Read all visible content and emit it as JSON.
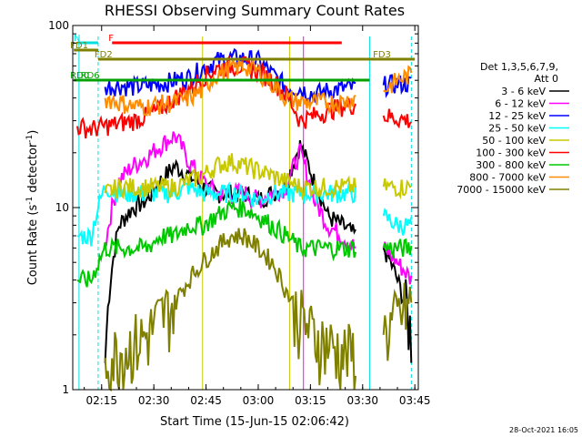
{
  "chart_data": {
    "type": "line",
    "title": "RHESSI Observing Summary Count Rates",
    "xlabel": "Start Time (15-Jun-15 02:06:42)",
    "ylabel": "Count Rate (s⁻¹ detector⁻¹)",
    "xlim": [
      "02:06:42",
      "03:46:00"
    ],
    "ylim": [
      1,
      100
    ],
    "yscale": "log",
    "x_ticks": [
      "02:15",
      "02:30",
      "02:45",
      "03:00",
      "03:15",
      "03:30",
      "03:45"
    ],
    "y_ticks": [
      "1",
      "10",
      "100"
    ],
    "legend_title": [
      "Det 1,3,5,6,7,9,",
      "Att 0"
    ],
    "legend_placement": "right",
    "x": [
      "02:08",
      "02:12",
      "02:16",
      "02:20",
      "02:24",
      "02:28",
      "02:32",
      "02:36",
      "02:40",
      "02:44",
      "02:48",
      "02:52",
      "02:56",
      "03:00",
      "03:04",
      "03:08",
      "03:12",
      "03:16",
      "03:20",
      "03:24",
      "03:28",
      "03:32",
      "03:36",
      "03:40",
      "03:44"
    ],
    "series": [
      {
        "name": "3 - 6 keV",
        "color": "#000000",
        "values": [
          null,
          null,
          1.4,
          8,
          10,
          11,
          14,
          17,
          15,
          13,
          12,
          12,
          12,
          11,
          12,
          13,
          22,
          14,
          9,
          8,
          7,
          null,
          6,
          4,
          2
        ]
      },
      {
        "name": "6 - 12 keV",
        "color": "#ff00ff",
        "values": [
          null,
          null,
          6,
          14,
          17,
          19,
          22,
          25,
          18,
          14,
          12,
          12,
          12,
          11,
          12,
          13,
          20,
          11,
          8,
          7,
          6,
          null,
          6,
          5,
          4
        ]
      },
      {
        "name": "12 - 25 keV",
        "color": "#0000ff",
        "values": [
          null,
          null,
          46,
          47,
          46,
          47,
          48,
          50,
          52,
          58,
          64,
          66,
          66,
          64,
          54,
          46,
          45,
          42,
          44,
          45,
          46,
          null,
          47,
          48,
          48
        ]
      },
      {
        "name": "25 - 50 keV",
        "color": "#00ffff",
        "values": [
          7,
          7,
          13,
          12,
          12,
          12,
          12,
          12,
          13,
          12,
          12,
          12,
          12,
          11,
          12,
          12,
          12,
          12,
          12,
          12,
          12,
          null,
          9,
          8,
          8
        ]
      },
      {
        "name": "50 - 100 keV",
        "color": "#c8c800",
        "values": [
          null,
          null,
          12,
          13,
          13,
          13,
          13,
          13,
          14,
          15,
          17,
          18,
          17,
          16,
          15,
          14,
          13,
          13,
          13,
          13,
          13,
          null,
          13,
          13,
          13
        ]
      },
      {
        "name": "100 - 300 keV",
        "color": "#ff0000",
        "values": [
          28,
          27,
          28,
          29,
          30,
          32,
          35,
          40,
          45,
          52,
          58,
          60,
          60,
          56,
          50,
          42,
          30,
          32,
          34,
          36,
          37,
          null,
          32,
          31,
          30
        ]
      },
      {
        "name": "300 - 800 keV",
        "color": "#00c800",
        "values": [
          4,
          4,
          6,
          6,
          6,
          6,
          7,
          7,
          8,
          8,
          9,
          10,
          10,
          9,
          8,
          7,
          6,
          6,
          6,
          6,
          6,
          null,
          6,
          6,
          6
        ]
      },
      {
        "name": "800 - 7000 keV",
        "color": "#ff8c00",
        "values": [
          null,
          null,
          40,
          38,
          36,
          36,
          37,
          38,
          40,
          44,
          54,
          58,
          60,
          56,
          48,
          40,
          38,
          38,
          38,
          38,
          40,
          null,
          44,
          50,
          54
        ]
      },
      {
        "name": "7000 - 15000 keV",
        "color": "#808000",
        "values": [
          null,
          null,
          1.5,
          1.6,
          1.8,
          2,
          2.5,
          3,
          4,
          5,
          6,
          7,
          7,
          6,
          5,
          3.5,
          2.5,
          2,
          1.8,
          1.6,
          1.6,
          null,
          2,
          2.5,
          3
        ]
      }
    ],
    "flags": [
      {
        "label": "N",
        "color": "#00e0e0",
        "row": "top"
      },
      {
        "label": "F",
        "color": "#ff0000",
        "row": "top"
      },
      {
        "label": "FD1",
        "color": "#808000",
        "row": "middle"
      },
      {
        "label": "FD2",
        "color": "#808000",
        "row": "middle"
      },
      {
        "label": "FD3",
        "color": "#808000",
        "row": "middle"
      },
      {
        "label": "RD0",
        "color": "#00a000",
        "row": "low"
      },
      {
        "label": "RD6",
        "color": "#00a000",
        "row": "low"
      }
    ],
    "grid": false,
    "timestamp": "28-Oct-2021 16:05"
  }
}
